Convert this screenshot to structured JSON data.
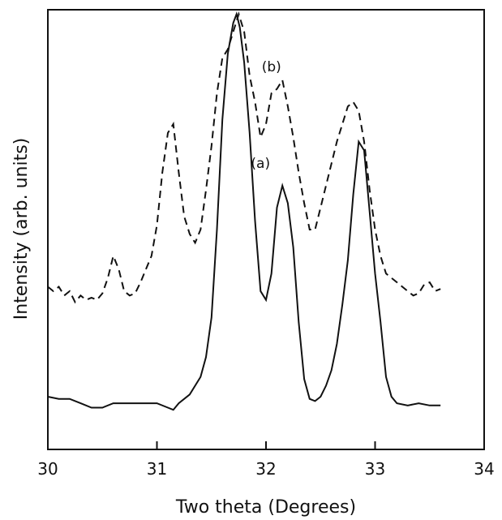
{
  "chart_data": {
    "type": "line",
    "xlabel": "Two theta (Degrees)",
    "ylabel": "Intensity (arb. units)",
    "xlim": [
      30,
      34
    ],
    "ylim": [
      0,
      100
    ],
    "xticks": [
      30,
      31,
      32,
      33,
      34
    ],
    "xtick_labels": [
      "30",
      "31",
      "32",
      "33",
      "34"
    ],
    "yticks_shown": false,
    "grid": false,
    "series": [
      {
        "name": "(a)",
        "style": "solid",
        "x": [
          30.0,
          30.1,
          30.2,
          30.3,
          30.4,
          30.5,
          30.6,
          30.7,
          30.8,
          30.9,
          31.0,
          31.1,
          31.15,
          31.2,
          31.3,
          31.4,
          31.45,
          31.5,
          31.55,
          31.6,
          31.65,
          31.7,
          31.73,
          31.76,
          31.8,
          31.85,
          31.9,
          31.95,
          32.0,
          32.05,
          32.1,
          32.15,
          32.2,
          32.25,
          32.3,
          32.35,
          32.4,
          32.45,
          32.5,
          32.55,
          32.6,
          32.65,
          32.7,
          32.75,
          32.8,
          32.85,
          32.9,
          32.95,
          33.0,
          33.05,
          33.1,
          33.15,
          33.2,
          33.3,
          33.4,
          33.5,
          33.6
        ],
        "y": [
          12.0,
          11.5,
          11.5,
          10.5,
          9.5,
          9.5,
          10.5,
          10.5,
          10.5,
          10.5,
          10.5,
          9.5,
          9.0,
          10.5,
          12.5,
          16.5,
          21.0,
          30.0,
          50.0,
          75.0,
          90.0,
          97.0,
          99.0,
          96.0,
          88.0,
          72.0,
          52.0,
          36.0,
          34.0,
          40.0,
          55.0,
          60.0,
          56.0,
          46.0,
          29.0,
          16.0,
          11.5,
          11.0,
          12.0,
          14.5,
          18.0,
          24.0,
          33.0,
          43.0,
          58.0,
          70.0,
          68.0,
          54.0,
          40.0,
          29.0,
          16.5,
          12.0,
          10.5,
          10.0,
          10.5,
          10.0,
          10.0
        ]
      },
      {
        "name": "(b)",
        "style": "dashed",
        "x": [
          30.0,
          30.05,
          30.1,
          30.15,
          30.2,
          30.25,
          30.3,
          30.35,
          30.4,
          30.45,
          30.5,
          30.55,
          30.6,
          30.65,
          30.7,
          30.75,
          30.8,
          30.85,
          30.9,
          30.95,
          31.0,
          31.05,
          31.1,
          31.15,
          31.2,
          31.25,
          31.3,
          31.35,
          31.4,
          31.45,
          31.5,
          31.55,
          31.6,
          31.65,
          31.7,
          31.75,
          31.8,
          31.85,
          31.9,
          31.95,
          32.0,
          32.05,
          32.1,
          32.15,
          32.2,
          32.25,
          32.3,
          32.35,
          32.4,
          32.45,
          32.5,
          32.55,
          32.6,
          32.65,
          32.7,
          32.75,
          32.8,
          32.85,
          32.9,
          32.95,
          33.0,
          33.05,
          33.1,
          33.15,
          33.2,
          33.25,
          33.3,
          33.35,
          33.4,
          33.45,
          33.5,
          33.55,
          33.6
        ],
        "y": [
          37.0,
          36.0,
          37.0,
          35.0,
          36.0,
          33.5,
          35.0,
          34.0,
          34.5,
          34.0,
          35.5,
          39.0,
          44.0,
          41.0,
          36.0,
          35.0,
          35.5,
          38.0,
          41.0,
          44.0,
          51.0,
          63.0,
          72.0,
          74.0,
          63.0,
          53.0,
          49.0,
          47.0,
          50.0,
          59.0,
          69.0,
          81.0,
          89.0,
          91.0,
          95.0,
          99.0,
          95.0,
          85.0,
          79.0,
          71.0,
          74.0,
          81.0,
          82.0,
          84.0,
          78.0,
          71.0,
          63.0,
          56.0,
          50.0,
          50.0,
          55.0,
          60.0,
          65.0,
          70.0,
          74.0,
          78.0,
          79.0,
          77.0,
          70.0,
          59.0,
          50.0,
          44.0,
          40.0,
          39.0,
          38.0,
          37.0,
          36.0,
          35.0,
          35.5,
          37.5,
          38.0,
          36.0,
          36.5
        ]
      }
    ],
    "annotations": [
      {
        "text": "(b)",
        "x": 32.05,
        "y": 86
      },
      {
        "text": "(a)",
        "x": 31.95,
        "y": 64
      }
    ]
  }
}
